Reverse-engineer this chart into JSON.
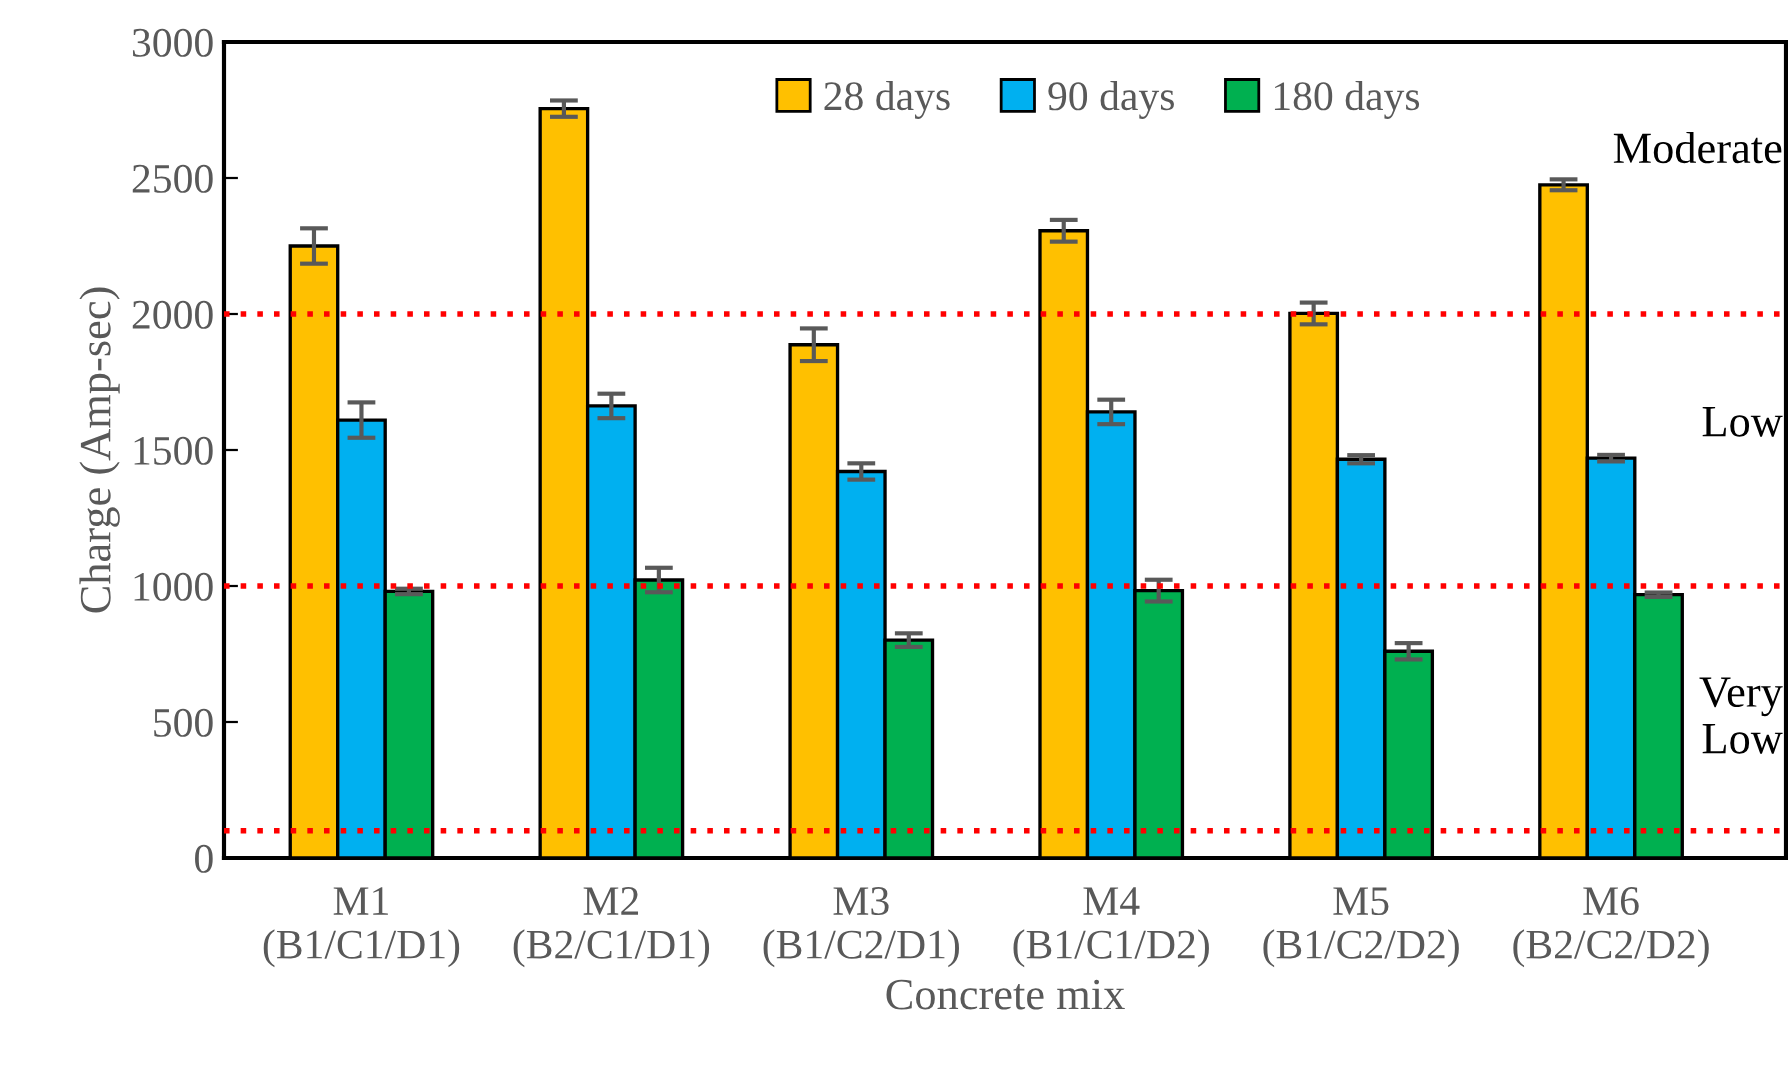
{
  "chart_data": {
    "type": "bar",
    "xlabel": "Concrete mix",
    "ylabel": "Charge (Amp-sec)",
    "categories": [
      "M1\n(B1/C1/D1)",
      "M2\n(B2/C1/D1)",
      "M3\n(B1/C2/D1)",
      "M4\n(B1/C1/D2)",
      "M5\n(B1/C2/D2)",
      "M6\n(B2/C2/D2)"
    ],
    "series": [
      {
        "name": "28 days",
        "color": "#ffc000",
        "values": [
          2250,
          2755,
          1887,
          2306,
          2002,
          2475
        ],
        "errors": [
          65,
          30,
          60,
          40,
          40,
          20
        ]
      },
      {
        "name": "90 days",
        "color": "#00b0f0",
        "values": [
          1610,
          1662,
          1421,
          1640,
          1466,
          1470
        ],
        "errors": [
          65,
          45,
          30,
          45,
          15,
          12
        ]
      },
      {
        "name": "180 days",
        "color": "#00b050",
        "values": [
          980,
          1022,
          801,
          983,
          760,
          968
        ],
        "errors": [
          10,
          45,
          25,
          40,
          30,
          8
        ]
      }
    ],
    "ylim": [
      0,
      3000
    ],
    "yticks": [
      0,
      500,
      1000,
      1500,
      2000,
      2500,
      3000
    ],
    "ref_lines": [
      {
        "axis": "y",
        "value": 2000,
        "color": "#ff0000",
        "line_style": "dotted"
      },
      {
        "axis": "y",
        "value": 1000,
        "color": "#ff0000",
        "line_style": "dotted"
      },
      {
        "axis": "y",
        "value": 100,
        "color": "#ff0000",
        "line_style": "dotted"
      }
    ],
    "annotations": [
      "Moderate",
      "Low",
      "Very\nLow"
    ],
    "legend": "top",
    "grid": false
  }
}
